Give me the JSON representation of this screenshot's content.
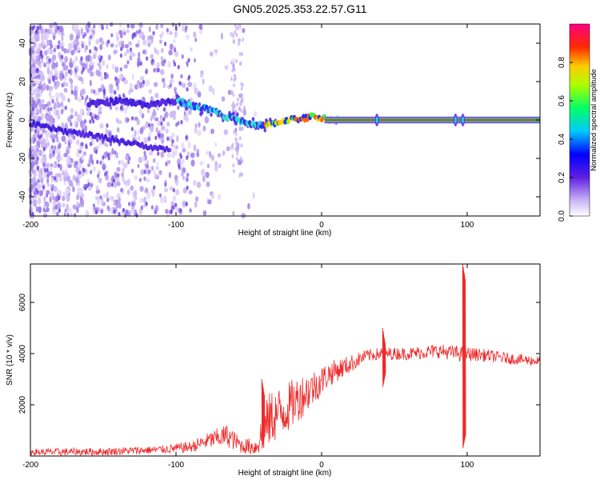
{
  "title": "GN05.2025.353.22.57.G11",
  "chart_data": [
    {
      "type": "heatmap",
      "xlabel": "Height of straight line (km)",
      "ylabel": "Frequency (Hz)",
      "xlim": [
        -200,
        150
      ],
      "ylim": [
        -50,
        50
      ],
      "xticks": [
        -200,
        -100,
        0,
        100
      ],
      "xtick_labels": [
        "-200",
        "-100",
        "0",
        "100"
      ],
      "yticks": [
        -40,
        -20,
        0,
        20,
        40
      ],
      "ytick_labels": [
        "-40",
        "-20",
        "0",
        "20",
        "40"
      ],
      "colorbar": {
        "label": "Normalized spectral amplitude",
        "range": [
          0,
          1
        ],
        "ticks": [
          0,
          0.2,
          0.4,
          0.6,
          0.8
        ],
        "tick_labels": [
          "0.0",
          "0.2",
          "0.4",
          "0.6",
          "0.8"
        ]
      },
      "main_trace": [
        {
          "x": -200,
          "y": -2
        },
        {
          "x": -175,
          "y": -6
        },
        {
          "x": -150,
          "y": -9
        },
        {
          "x": -125,
          "y": -13
        },
        {
          "x": -110,
          "y": -15
        }
      ],
      "upper_trace": [
        {
          "x": -160,
          "y": 8
        },
        {
          "x": -140,
          "y": 10
        },
        {
          "x": -120,
          "y": 8
        },
        {
          "x": -100,
          "y": 10
        },
        {
          "x": -90,
          "y": 8
        },
        {
          "x": -75,
          "y": 5
        },
        {
          "x": -60,
          "y": 0
        },
        {
          "x": -45,
          "y": -3
        },
        {
          "x": -35,
          "y": -2
        },
        {
          "x": -25,
          "y": 0
        },
        {
          "x": -10,
          "y": 1
        },
        {
          "x": -5,
          "y": 2
        },
        {
          "x": 0,
          "y": 1
        },
        {
          "x": 10,
          "y": 0
        },
        {
          "x": 150,
          "y": 0
        }
      ]
    },
    {
      "type": "line",
      "xlabel": "Height of straight line (km)",
      "ylabel": "SNR (10 * v/v)",
      "xlim": [
        -200,
        150
      ],
      "ylim": [
        0,
        7500
      ],
      "xticks": [
        -200,
        -100,
        0,
        100
      ],
      "xtick_labels": [
        "-200",
        "-100",
        "0",
        "100"
      ],
      "yticks": [
        2000,
        4000,
        6000
      ],
      "ytick_labels": [
        "2000",
        "4000",
        "6000"
      ],
      "series": [
        {
          "name": "SNR",
          "color": "#ee2a2a",
          "envelope": [
            {
              "x": -200,
              "y": 150,
              "amp": 150
            },
            {
              "x": -150,
              "y": 170,
              "amp": 150
            },
            {
              "x": -110,
              "y": 250,
              "amp": 160
            },
            {
              "x": -90,
              "y": 350,
              "amp": 220
            },
            {
              "x": -75,
              "y": 650,
              "amp": 350
            },
            {
              "x": -65,
              "y": 800,
              "amp": 450
            },
            {
              "x": -55,
              "y": 400,
              "amp": 300
            },
            {
              "x": -45,
              "y": 350,
              "amp": 350
            },
            {
              "x": -40,
              "y": 1000,
              "amp": 900
            },
            {
              "x": -35,
              "y": 1500,
              "amp": 1100
            },
            {
              "x": -25,
              "y": 1800,
              "amp": 1000
            },
            {
              "x": -15,
              "y": 2300,
              "amp": 900
            },
            {
              "x": -5,
              "y": 2700,
              "amp": 700
            },
            {
              "x": 5,
              "y": 3200,
              "amp": 500
            },
            {
              "x": 20,
              "y": 3600,
              "amp": 350
            },
            {
              "x": 30,
              "y": 3900,
              "amp": 250
            },
            {
              "x": 40,
              "y": 4000,
              "amp": 250
            },
            {
              "x": 60,
              "y": 4000,
              "amp": 250
            },
            {
              "x": 80,
              "y": 4100,
              "amp": 280
            },
            {
              "x": 95,
              "y": 4000,
              "amp": 300
            },
            {
              "x": 110,
              "y": 3950,
              "amp": 250
            },
            {
              "x": 130,
              "y": 3800,
              "amp": 220
            },
            {
              "x": 150,
              "y": 3700,
              "amp": 200
            }
          ],
          "spikes": [
            {
              "x": -40,
              "y_max": 3000,
              "y_min": 300
            },
            {
              "x": 43,
              "y_max": 5000,
              "y_min": 2700
            },
            {
              "x": 98,
              "y_max": 7500,
              "y_min": 300
            }
          ]
        }
      ]
    }
  ]
}
